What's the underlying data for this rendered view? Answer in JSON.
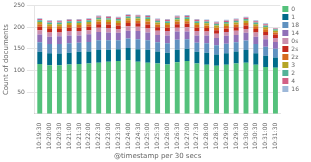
{
  "chart_data": {
    "type": "bar",
    "stacked": true,
    "categories": [
      "10:19:30",
      "10:20:00",
      "10:20:30",
      "10:21:00",
      "10:21:30",
      "10:22:00",
      "10:22:30",
      "10:23:00",
      "10:23:30",
      "10:24:00",
      "10:24:30",
      "10:25:00",
      "10:25:30",
      "10:26:00",
      "10:26:30",
      "10:27:00",
      "10:27:30",
      "10:28:00",
      "10:28:30",
      "10:29:00",
      "10:29:30",
      "10:30:00",
      "10:30:30",
      "10:31:00",
      "10:31:30"
    ],
    "x_label": "@timestamp per 30 secs",
    "y_label": "Count of documents",
    "ylim": [
      0,
      250
    ],
    "yticks": [
      50,
      100,
      150,
      200,
      250
    ],
    "grid": true,
    "legend": "right",
    "series": [
      {
        "name": "0",
        "color": "#54c17b",
        "values": [
          115,
          112,
          112,
          114,
          115,
          116,
          118,
          120,
          122,
          124,
          120,
          118,
          116,
          114,
          119,
          122,
          116,
          113,
          111,
          113,
          116,
          118,
          113,
          108,
          106
        ]
      },
      {
        "name": "1",
        "color": "#006b8a",
        "values": [
          28,
          28,
          27,
          27,
          28,
          28,
          29,
          28,
          27,
          28,
          29,
          30,
          28,
          27,
          29,
          28,
          27,
          28,
          26,
          27,
          28,
          29,
          27,
          26,
          24
        ]
      },
      {
        "name": "18",
        "color": "#6092c0",
        "values": [
          22,
          21,
          22,
          22,
          21,
          22,
          23,
          22,
          21,
          22,
          23,
          22,
          21,
          22,
          23,
          22,
          21,
          22,
          21,
          22,
          21,
          22,
          21,
          21,
          20
        ]
      },
      {
        "name": "14",
        "color": "#9170b8",
        "values": [
          18,
          17,
          18,
          18,
          17,
          18,
          19,
          18,
          17,
          18,
          19,
          18,
          17,
          18,
          19,
          18,
          17,
          18,
          17,
          18,
          17,
          18,
          17,
          17,
          16
        ]
      },
      {
        "name": "0s",
        "color": "#ca8eae",
        "values": [
          10,
          10,
          9,
          10,
          10,
          9,
          10,
          10,
          9,
          10,
          10,
          9,
          10,
          10,
          9,
          10,
          10,
          9,
          10,
          9,
          10,
          9,
          10,
          9,
          9
        ]
      },
      {
        "name": "2s",
        "color": "#c5291e",
        "values": [
          8,
          8,
          8,
          8,
          8,
          8,
          8,
          8,
          8,
          8,
          8,
          9,
          8,
          8,
          8,
          8,
          8,
          8,
          8,
          8,
          8,
          8,
          8,
          8,
          8
        ]
      },
      {
        "name": "2z",
        "color": "#d66b1e",
        "values": [
          6,
          6,
          6,
          6,
          6,
          6,
          6,
          6,
          6,
          6,
          6,
          7,
          6,
          6,
          6,
          6,
          6,
          6,
          6,
          6,
          6,
          6,
          6,
          6,
          5
        ]
      },
      {
        "name": "3",
        "color": "#b5a525",
        "values": [
          5,
          5,
          5,
          5,
          5,
          5,
          5,
          5,
          5,
          5,
          5,
          6,
          5,
          5,
          5,
          5,
          5,
          5,
          5,
          5,
          5,
          5,
          5,
          5,
          4
        ]
      },
      {
        "name": "2",
        "color": "#54b399",
        "values": [
          4,
          4,
          4,
          4,
          4,
          4,
          4,
          4,
          4,
          4,
          4,
          4,
          4,
          4,
          4,
          4,
          4,
          4,
          4,
          4,
          4,
          4,
          4,
          4,
          3
        ]
      },
      {
        "name": "4",
        "color": "#d36086",
        "values": [
          3,
          3,
          3,
          3,
          3,
          3,
          3,
          3,
          3,
          3,
          3,
          3,
          3,
          3,
          3,
          3,
          3,
          3,
          3,
          3,
          3,
          3,
          3,
          3,
          2
        ]
      },
      {
        "name": "16",
        "color": "#9eb8d9",
        "values": [
          2,
          2,
          2,
          2,
          2,
          2,
          2,
          2,
          2,
          2,
          2,
          2,
          2,
          2,
          2,
          2,
          2,
          2,
          2,
          2,
          2,
          2,
          2,
          2,
          1
        ]
      }
    ]
  }
}
